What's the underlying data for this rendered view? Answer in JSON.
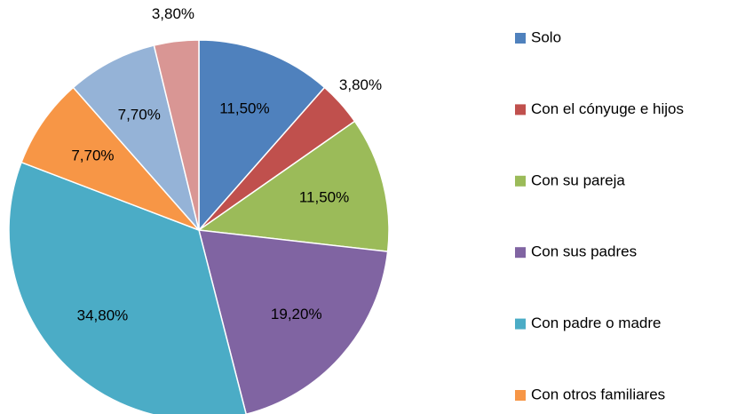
{
  "chart_data": {
    "type": "pie",
    "categories": [
      "Solo",
      "Con el cónyuge e hijos",
      "Con su pareja",
      "Con sus padres",
      "Con padre o madre",
      "Con otros familiares",
      null,
      null
    ],
    "values": [
      11.5,
      3.8,
      11.5,
      19.2,
      34.8,
      7.7,
      7.7,
      3.8
    ],
    "value_labels": [
      "11,50%",
      "3,80%",
      "11,50%",
      "19,20%",
      "34,80%",
      "7,70%",
      "7,70%",
      "3,80%"
    ],
    "colors": [
      "#4f81bd",
      "#c0504d",
      "#9bbb59",
      "#8064a2",
      "#4bacc6",
      "#f79646",
      "#95b3d7",
      "#d99694"
    ],
    "legend": "right"
  }
}
